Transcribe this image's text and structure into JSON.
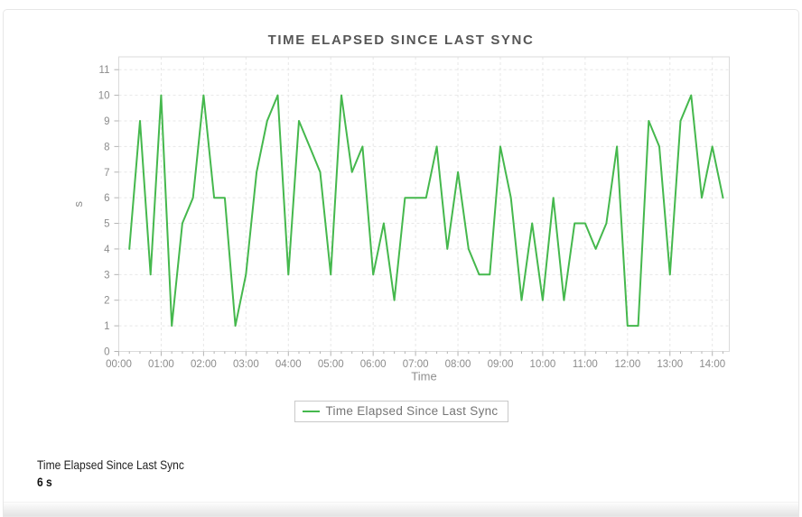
{
  "title": "TIME ELAPSED SINCE LAST SYNC",
  "legend": {
    "label": "Time Elapsed Since Last Sync"
  },
  "summary": {
    "label": "Time Elapsed Since Last Sync",
    "value": "6 s"
  },
  "colors": {
    "line": "#45b84d",
    "grid": "#e7e7e7",
    "plot_border": "#dbdbdb",
    "tick": "#b3b3b3",
    "tick_text": "#8c8c8c",
    "axis_title_text": "#8f8f8f",
    "title_text": "#565656",
    "legend_text": "#757575",
    "legend_border": "#c9c9c9"
  },
  "chart_data": {
    "type": "line",
    "title": "TIME ELAPSED SINCE LAST SYNC",
    "xlabel": "Time",
    "ylabel": "s",
    "legend_position": "bottom-center",
    "grid": "dashed",
    "x_ticks": [
      "00:00",
      "01:00",
      "02:00",
      "03:00",
      "04:00",
      "05:00",
      "06:00",
      "07:00",
      "08:00",
      "09:00",
      "10:00",
      "11:00",
      "12:00",
      "13:00",
      "14:00"
    ],
    "y_ticks": [
      0,
      1,
      2,
      3,
      4,
      5,
      6,
      7,
      8,
      9,
      10,
      11
    ],
    "ylim": [
      0,
      11.5
    ],
    "xlim_hours": [
      0,
      14.4
    ],
    "interval_minutes": 15,
    "series": [
      {
        "name": "Time Elapsed Since Last Sync",
        "unit": "s",
        "points": [
          [
            "00:15",
            4
          ],
          [
            "00:30",
            9
          ],
          [
            "00:45",
            3
          ],
          [
            "01:00",
            10
          ],
          [
            "01:15",
            1
          ],
          [
            "01:30",
            5
          ],
          [
            "01:45",
            6
          ],
          [
            "02:00",
            10
          ],
          [
            "02:15",
            6
          ],
          [
            "02:30",
            6
          ],
          [
            "02:45",
            1
          ],
          [
            "03:00",
            3
          ],
          [
            "03:15",
            7
          ],
          [
            "03:30",
            9
          ],
          [
            "03:45",
            10
          ],
          [
            "04:00",
            3
          ],
          [
            "04:15",
            9
          ],
          [
            "04:30",
            8
          ],
          [
            "04:45",
            7
          ],
          [
            "05:00",
            3
          ],
          [
            "05:15",
            10
          ],
          [
            "05:30",
            7
          ],
          [
            "05:45",
            8
          ],
          [
            "06:00",
            3
          ],
          [
            "06:15",
            5
          ],
          [
            "06:30",
            2
          ],
          [
            "06:45",
            6
          ],
          [
            "07:00",
            6
          ],
          [
            "07:15",
            6
          ],
          [
            "07:30",
            8
          ],
          [
            "07:45",
            4
          ],
          [
            "08:00",
            7
          ],
          [
            "08:15",
            4
          ],
          [
            "08:30",
            3
          ],
          [
            "08:45",
            3
          ],
          [
            "09:00",
            8
          ],
          [
            "09:15",
            6
          ],
          [
            "09:30",
            2
          ],
          [
            "09:45",
            5
          ],
          [
            "10:00",
            2
          ],
          [
            "10:15",
            6
          ],
          [
            "10:30",
            2
          ],
          [
            "10:45",
            5
          ],
          [
            "11:00",
            5
          ],
          [
            "11:15",
            4
          ],
          [
            "11:30",
            5
          ],
          [
            "11:45",
            8
          ],
          [
            "12:00",
            1
          ],
          [
            "12:15",
            1
          ],
          [
            "12:30",
            9
          ],
          [
            "12:45",
            8
          ],
          [
            "13:00",
            3
          ],
          [
            "13:15",
            9
          ],
          [
            "13:30",
            10
          ],
          [
            "13:45",
            6
          ],
          [
            "14:00",
            8
          ],
          [
            "14:15",
            6
          ]
        ]
      }
    ]
  }
}
